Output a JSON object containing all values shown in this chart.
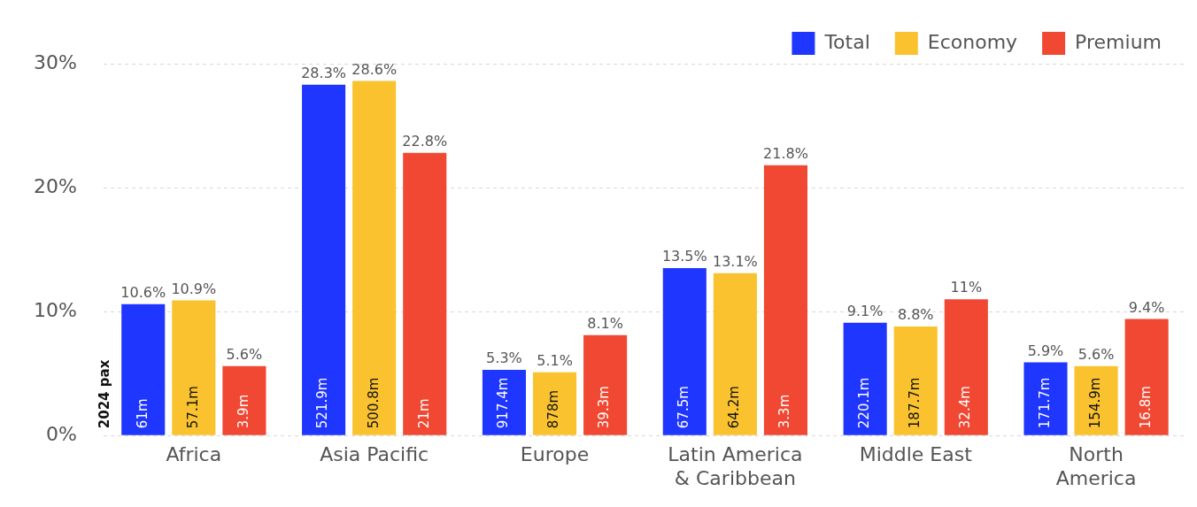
{
  "chart_data": {
    "type": "bar",
    "categories": [
      "Africa",
      "Asia Pacific",
      "Europe",
      "Latin America\n& Caribbean",
      "Middle East",
      "North\nAmerica"
    ],
    "series": [
      {
        "name": "Total",
        "color": "#1f36ff",
        "values": [
          10.6,
          28.3,
          5.3,
          13.5,
          9.1,
          5.9
        ],
        "value_labels": [
          "10.6%",
          "28.3%",
          "5.3%",
          "13.5%",
          "9.1%",
          "5.9%"
        ]
      },
      {
        "name": "Economy",
        "color": "#f9c22e",
        "values": [
          10.9,
          28.6,
          5.1,
          13.1,
          8.8,
          5.6
        ],
        "value_labels": [
          "10.9%",
          "28.6%",
          "5.1%",
          "13.1%",
          "8.8%",
          "5.6%"
        ]
      },
      {
        "name": "Premium",
        "color": "#f04832",
        "values": [
          5.6,
          22.8,
          8.1,
          21.8,
          11,
          9.4
        ],
        "value_labels": [
          "5.6%",
          "22.8%",
          "8.1%",
          "21.8%",
          "11%",
          "9.4%"
        ]
      }
    ],
    "ylim": [
      0,
      30
    ],
    "yticks": [
      {
        "value": 0,
        "label": "0%"
      },
      {
        "value": 10,
        "label": "10%"
      },
      {
        "value": 20,
        "label": "20%"
      },
      {
        "value": 30,
        "label": "30%"
      }
    ],
    "grid": "y",
    "legend": "top right",
    "annotations": [
      "2024 pax",
      "61m",
      "521.9m",
      "917.4m",
      "67.5m",
      "220.1m",
      "171.7m",
      "57.1m",
      "500.8m",
      "878m",
      "64.2m",
      "187.7m",
      "154.9m",
      "3.9m",
      "21m",
      "39.3m",
      "3.3m",
      "32.4m",
      "16.8m"
    ]
  }
}
